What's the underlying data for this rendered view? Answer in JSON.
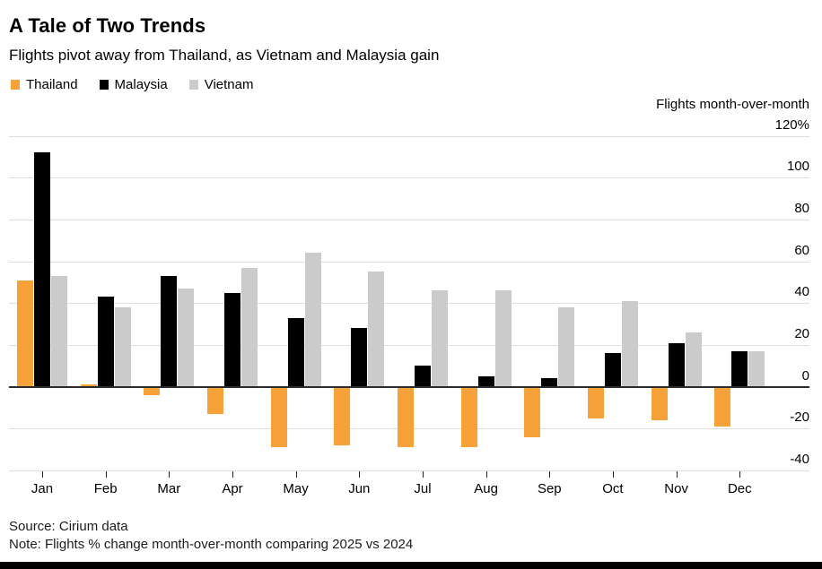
{
  "header": {
    "title": "A Tale of Two Trends",
    "subtitle": "Flights pivot away from Thailand, as Vietnam and Malaysia gain"
  },
  "legend": [
    {
      "label": "Thailand",
      "color": "#F7A139"
    },
    {
      "label": "Malaysia",
      "color": "#000000"
    },
    {
      "label": "Vietnam",
      "color": "#CBCBCB"
    }
  ],
  "axis_title": "Flights month-over-month",
  "chart_data": {
    "type": "bar",
    "title": "A Tale of Two Trends",
    "subtitle": "Flights pivot away from Thailand, as Vietnam and Malaysia gain",
    "categories": [
      "Jan",
      "Feb",
      "Mar",
      "Apr",
      "May",
      "Jun",
      "Jul",
      "Aug",
      "Sep",
      "Oct",
      "Nov",
      "Dec"
    ],
    "series": [
      {
        "name": "Thailand",
        "color": "#F7A139",
        "values": [
          51,
          1,
          -4,
          -13,
          -29,
          -28,
          -29,
          -29,
          -24,
          -15,
          -16,
          -19
        ]
      },
      {
        "name": "Malaysia",
        "color": "#000000",
        "values": [
          112,
          43,
          53,
          45,
          33,
          28,
          10,
          5,
          4,
          16,
          21,
          17
        ]
      },
      {
        "name": "Vietnam",
        "color": "#CBCBCB",
        "values": [
          53,
          38,
          47,
          57,
          64,
          55,
          46,
          46,
          38,
          41,
          26,
          17
        ]
      }
    ],
    "ylabel": "Flights month-over-month",
    "y_ticks": [
      120,
      100,
      80,
      60,
      40,
      20,
      0,
      -20,
      -40
    ],
    "y_tick_labels": [
      "120%",
      "100",
      "80",
      "60",
      "40",
      "20",
      "0",
      "-20",
      "-40"
    ],
    "ylim": [
      -40,
      120
    ],
    "grid": true,
    "legend_position": "top-left",
    "units": "percent"
  },
  "footer": {
    "source": "Source: Cirium data",
    "note": "Note: Flights % change month-over-month comparing 2025 vs 2024"
  },
  "colors": {
    "gridline": "#DEDEDE",
    "zero_line": "#2B2B2B",
    "background": "#FFFFFF",
    "footer_bar": "#000000",
    "text": "#000000"
  }
}
